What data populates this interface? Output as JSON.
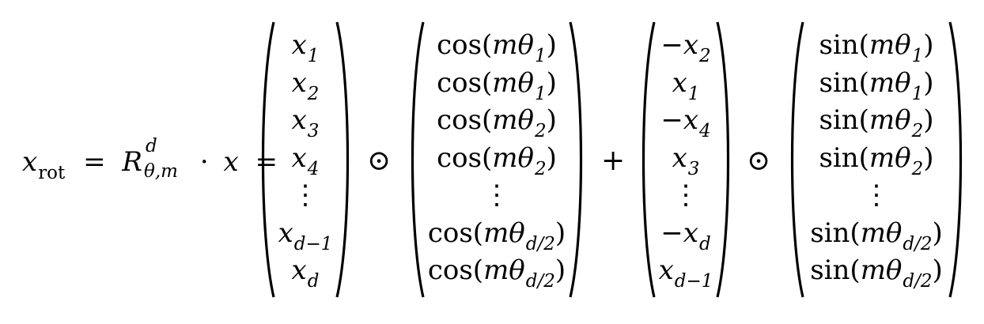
{
  "equation": {
    "lhs": {
      "var": "x",
      "var_sub": "rot",
      "eq1": "=",
      "rot_matrix": "R",
      "rot_sup": "d",
      "rot_sub": "θ,m",
      "dot": "·",
      "x": "x",
      "eq2": "="
    },
    "operators": {
      "hadamard_1": "⊙",
      "plus": "+",
      "hadamard_2": "⊙"
    },
    "vec_x": [
      {
        "base": "x",
        "sub": "1"
      },
      {
        "base": "x",
        "sub": "2"
      },
      {
        "base": "x",
        "sub": "3"
      },
      {
        "base": "x",
        "sub": "4"
      },
      {
        "base": "⋮",
        "sub": ""
      },
      {
        "base": "x",
        "sub": "d−1"
      },
      {
        "base": "x",
        "sub": "d"
      }
    ],
    "vec_cos": [
      {
        "fn": "cos(",
        "m": "mθ",
        "sub": "1",
        "close": ")"
      },
      {
        "fn": "cos(",
        "m": "mθ",
        "sub": "1",
        "close": ")"
      },
      {
        "fn": "cos(",
        "m": "mθ",
        "sub": "2",
        "close": ")"
      },
      {
        "fn": "cos(",
        "m": "mθ",
        "sub": "2",
        "close": ")"
      },
      {
        "fn": "⋮",
        "m": "",
        "sub": "",
        "close": ""
      },
      {
        "fn": "cos(",
        "m": "mθ",
        "sub": "d/2",
        "close": ")"
      },
      {
        "fn": "cos(",
        "m": "mθ",
        "sub": "d/2",
        "close": ")"
      }
    ],
    "vec_xs": [
      {
        "sign": "−",
        "base": "x",
        "sub": "2"
      },
      {
        "sign": "",
        "base": "x",
        "sub": "1"
      },
      {
        "sign": "−",
        "base": "x",
        "sub": "4"
      },
      {
        "sign": "",
        "base": "x",
        "sub": "3"
      },
      {
        "sign": "",
        "base": "⋮",
        "sub": ""
      },
      {
        "sign": "−",
        "base": "x",
        "sub": "d"
      },
      {
        "sign": "",
        "base": "x",
        "sub": "d−1"
      }
    ],
    "vec_sin": [
      {
        "fn": "sin(",
        "m": "mθ",
        "sub": "1",
        "close": ")"
      },
      {
        "fn": "sin(",
        "m": "mθ",
        "sub": "1",
        "close": ")"
      },
      {
        "fn": "sin(",
        "m": "mθ",
        "sub": "2",
        "close": ")"
      },
      {
        "fn": "sin(",
        "m": "mθ",
        "sub": "2",
        "close": ")"
      },
      {
        "fn": "⋮",
        "m": "",
        "sub": "",
        "close": ""
      },
      {
        "fn": "sin(",
        "m": "mθ",
        "sub": "d/2",
        "close": ")"
      },
      {
        "fn": "sin(",
        "m": "mθ",
        "sub": "d/2",
        "close": ")"
      }
    ]
  }
}
